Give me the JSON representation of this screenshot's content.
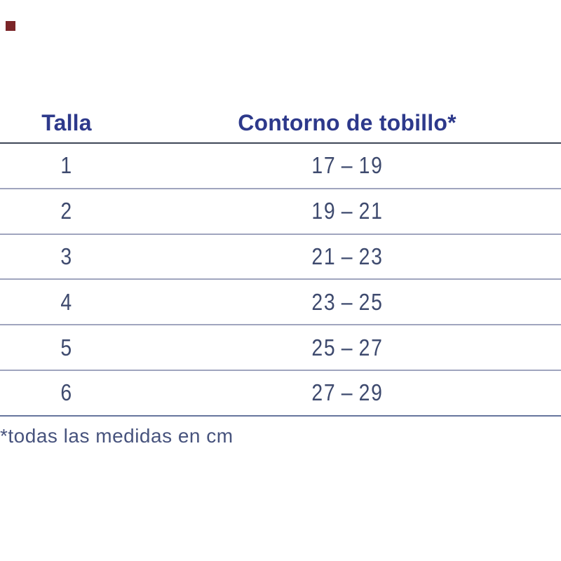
{
  "brand_mark": {
    "color": "#7B2528"
  },
  "table": {
    "headers": {
      "size": "Talla",
      "circumference": "Contorno de tobillo*"
    },
    "rows": [
      {
        "size": "1",
        "range": "17 – 19"
      },
      {
        "size": "2",
        "range": "19 – 21"
      },
      {
        "size": "3",
        "range": "21 – 23"
      },
      {
        "size": "4",
        "range": "23 – 25"
      },
      {
        "size": "5",
        "range": "25 – 27"
      },
      {
        "size": "6",
        "range": "27 – 29"
      }
    ],
    "units": "cm"
  },
  "footnote": "*todas las medidas en cm",
  "colors": {
    "header_text": "#2D398B",
    "value_text": "#3E4A6E",
    "footnote_text": "#47537D",
    "header_divider": "#3E4757",
    "row_divider": "#A0A5BE",
    "bottom_divider": "#66759D",
    "background": "#ffffff"
  }
}
